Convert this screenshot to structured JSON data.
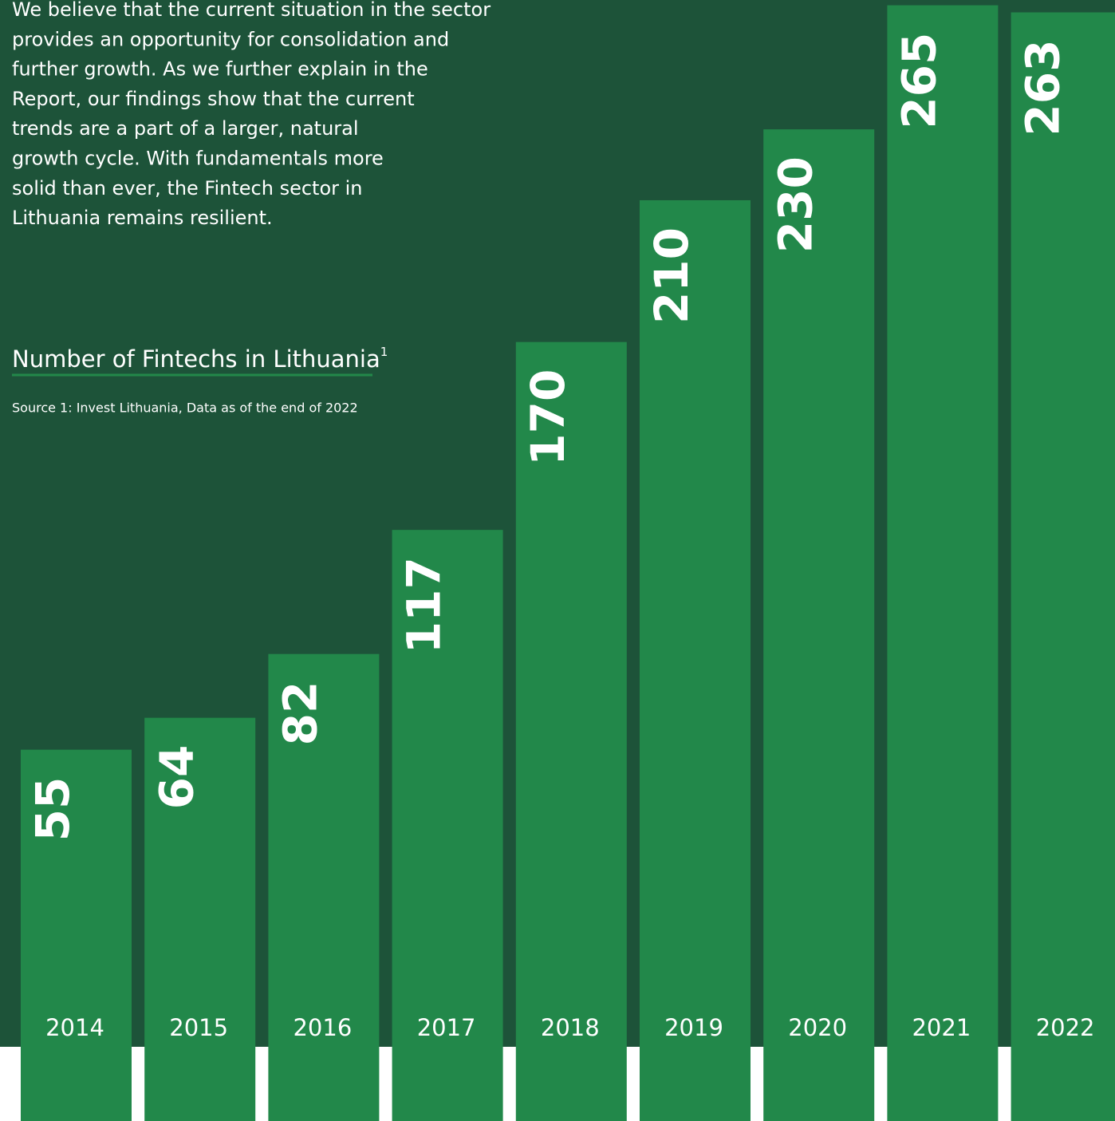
{
  "intro": {
    "lines": [
      "We believe that the current situation in the sector",
      "provides an opportunity for consolidation and",
      "further growth. As we further explain in the",
      "Report, our findings show that the current",
      "trends are a part of a larger, natural",
      "growth cycle. With fundamentals more",
      "solid than ever, the Fintech sector in",
      "Lithuania remains resilient."
    ]
  },
  "chart_data": {
    "type": "bar",
    "title": "Number of Fintechs in Lithuania",
    "title_note": "1",
    "source": "Source 1: Invest Lithuania, Data as of the end of 2022",
    "categories": [
      "2014",
      "2015",
      "2016",
      "2017",
      "2018",
      "2019",
      "2020",
      "2021",
      "2022"
    ],
    "values": [
      55,
      64,
      82,
      117,
      170,
      210,
      230,
      265,
      263
    ],
    "color": "#22884a"
  }
}
